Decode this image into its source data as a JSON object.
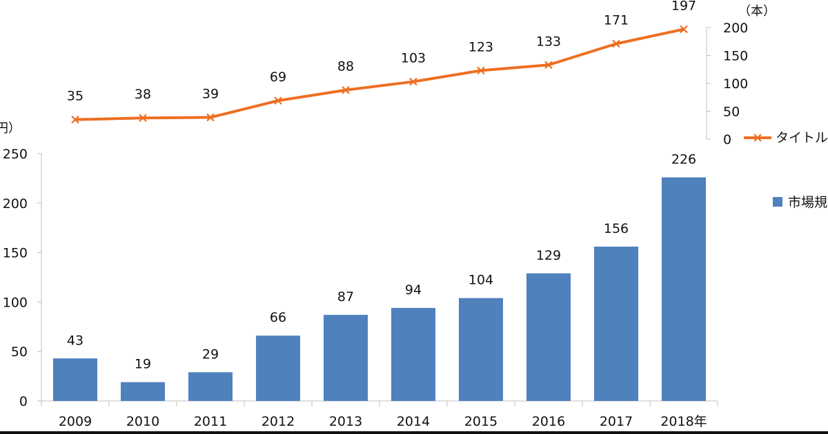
{
  "chart_data": [
    {
      "type": "line",
      "x": [
        "2009",
        "2010",
        "2011",
        "2012",
        "2013",
        "2014",
        "2015",
        "2016",
        "2017",
        "2018"
      ],
      "series": [
        {
          "name": "タイトル",
          "values": [
            35,
            38,
            39,
            69,
            88,
            103,
            123,
            133,
            171,
            197
          ],
          "color": "#EE6E22",
          "marker": "x"
        }
      ],
      "unit_label": "（本）",
      "y_axis_position": "right",
      "ylim": [
        0,
        200
      ],
      "yticks": [
        0,
        50,
        100,
        150,
        200
      ],
      "grid": false,
      "legend": "right"
    },
    {
      "type": "bar",
      "categories": [
        "2009",
        "2010",
        "2011",
        "2012",
        "2013",
        "2014",
        "2015",
        "2016",
        "2017",
        "2018年"
      ],
      "series": [
        {
          "name": "市場規模",
          "values": [
            43,
            19,
            29,
            66,
            87,
            94,
            104,
            129,
            156,
            226
          ],
          "color": "#4F81BD"
        }
      ],
      "unit_label": "円）",
      "ylim": [
        0,
        250
      ],
      "yticks": [
        0,
        50,
        100,
        150,
        200,
        250
      ],
      "ytick_labels": [
        "0",
        "50",
        "100",
        "150",
        "200",
        "250"
      ],
      "grid": false,
      "legend": "right"
    }
  ]
}
